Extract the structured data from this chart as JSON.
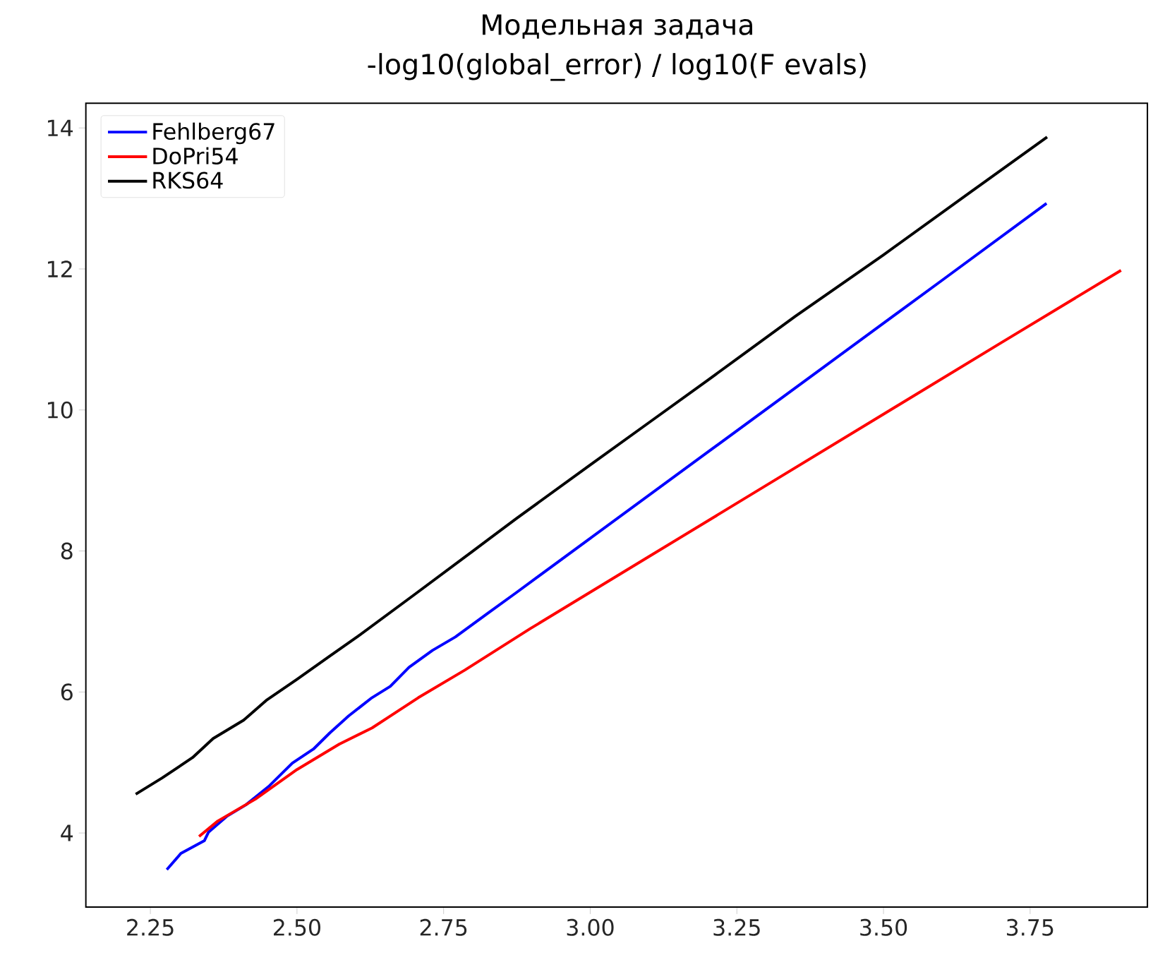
{
  "chart_data": {
    "type": "line",
    "title": "Модельная задача",
    "subtitle": "-log10(global_error) / log10(F evals)",
    "xlim": [
      2.14,
      3.95
    ],
    "ylim": [
      2.95,
      14.35
    ],
    "xticks": [
      {
        "value": 2.25,
        "label": "2.25"
      },
      {
        "value": 2.5,
        "label": "2.50"
      },
      {
        "value": 2.75,
        "label": "2.75"
      },
      {
        "value": 3.0,
        "label": "3.00"
      },
      {
        "value": 3.25,
        "label": "3.25"
      },
      {
        "value": 3.5,
        "label": "3.50"
      },
      {
        "value": 3.75,
        "label": "3.75"
      }
    ],
    "yticks": [
      4,
      6,
      8,
      10,
      12,
      14
    ],
    "legend": "top left",
    "grid": false,
    "marker": "none",
    "line_style": "solid",
    "series": [
      {
        "name": "Fehlberg67",
        "color": "#0000ff",
        "x": [
          2.278,
          2.302,
          2.342,
          2.349,
          2.381,
          2.413,
          2.453,
          2.492,
          2.528,
          2.556,
          2.588,
          2.628,
          2.659,
          2.691,
          2.731,
          2.77,
          2.826,
          2.874,
          3.0,
          3.2,
          3.4,
          3.6,
          3.778
        ],
        "values": [
          3.48,
          3.71,
          3.89,
          4.01,
          4.24,
          4.4,
          4.67,
          4.99,
          5.19,
          5.42,
          5.66,
          5.92,
          6.08,
          6.35,
          6.59,
          6.78,
          7.12,
          7.41,
          8.18,
          9.4,
          10.62,
          11.84,
          12.93
        ]
      },
      {
        "name": "DoPri54",
        "color": "#ff0000",
        "x": [
          2.333,
          2.365,
          2.429,
          2.5,
          2.572,
          2.628,
          2.707,
          2.786,
          2.898,
          3.1,
          3.3,
          3.5,
          3.7,
          3.905
        ],
        "values": [
          3.95,
          4.17,
          4.48,
          4.9,
          5.26,
          5.49,
          5.92,
          6.31,
          6.9,
          7.92,
          8.93,
          9.94,
          10.95,
          11.98
        ]
      },
      {
        "name": "RKS64",
        "color": "#000000",
        "x": [
          2.225,
          2.27,
          2.322,
          2.357,
          2.409,
          2.449,
          2.5,
          2.556,
          2.604,
          2.7,
          2.8,
          2.874,
          3.0,
          3.1,
          3.2,
          3.35,
          3.5,
          3.65,
          3.779
        ],
        "values": [
          4.55,
          4.78,
          5.07,
          5.34,
          5.6,
          5.89,
          6.18,
          6.51,
          6.79,
          7.38,
          8.0,
          8.46,
          9.22,
          9.82,
          10.42,
          11.33,
          12.2,
          13.1,
          13.87
        ]
      }
    ]
  }
}
